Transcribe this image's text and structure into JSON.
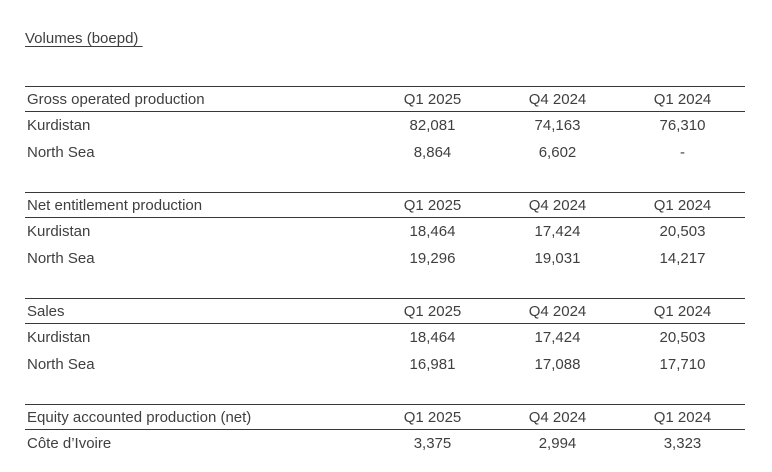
{
  "page": {
    "title": "Volumes (boepd) ",
    "text_color": "#3f3f3f",
    "rule_color": "#383838",
    "background": "#ffffff"
  },
  "table": {
    "columns": [
      "Q1 2025",
      "Q4 2024",
      "Q1 2024"
    ],
    "sections": [
      {
        "label": "Gross operated production",
        "rows": [
          {
            "label": "Kurdistan",
            "values": [
              "82,081",
              "74,163",
              "76,310"
            ]
          },
          {
            "label": "North Sea",
            "values": [
              "8,864",
              "6,602",
              "-"
            ]
          }
        ]
      },
      {
        "label": "Net entitlement production",
        "rows": [
          {
            "label": "Kurdistan",
            "values": [
              "18,464",
              "17,424",
              "20,503"
            ]
          },
          {
            "label": "North Sea",
            "values": [
              "19,296",
              "19,031",
              "14,217"
            ]
          }
        ]
      },
      {
        "label": "Sales",
        "rows": [
          {
            "label": "Kurdistan",
            "values": [
              "18,464",
              "17,424",
              "20,503"
            ]
          },
          {
            "label": "North Sea",
            "values": [
              "16,981",
              "17,088",
              "17,710"
            ]
          }
        ]
      },
      {
        "label": "Equity accounted production (net)",
        "rows": [
          {
            "label": "Côte d’Ivoire",
            "values": [
              "3,375",
              "2,994",
              "3,323"
            ]
          }
        ]
      }
    ]
  }
}
